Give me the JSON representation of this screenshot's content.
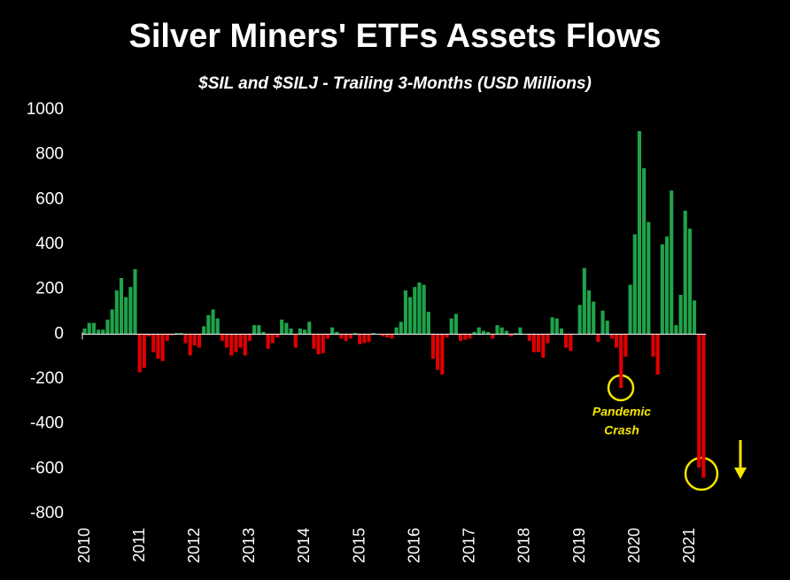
{
  "chart_data": {
    "type": "bar",
    "title": "Silver Miners' ETFs Assets Flows",
    "subtitle": "$SIL and $SILJ - Trailing 3-Months  (USD Millions)",
    "categories": [
      "2010",
      null,
      null,
      null,
      null,
      null,
      null,
      null,
      null,
      null,
      null,
      null,
      "2011",
      null,
      null,
      null,
      null,
      null,
      null,
      null,
      null,
      null,
      null,
      null,
      "2012",
      null,
      null,
      null,
      null,
      null,
      null,
      null,
      null,
      null,
      null,
      null,
      "2013",
      null,
      null,
      null,
      null,
      null,
      null,
      null,
      null,
      null,
      null,
      null,
      "2014",
      null,
      null,
      null,
      null,
      null,
      null,
      null,
      null,
      null,
      null,
      null,
      "2015",
      null,
      null,
      null,
      null,
      null,
      null,
      null,
      null,
      null,
      null,
      null,
      "2016",
      null,
      null,
      null,
      null,
      null,
      null,
      null,
      null,
      null,
      null,
      null,
      "2017",
      null,
      null,
      null,
      null,
      null,
      null,
      null,
      null,
      null,
      null,
      null,
      "2018",
      null,
      null,
      null,
      null,
      null,
      null,
      null,
      null,
      null,
      null,
      null,
      "2019",
      null,
      null,
      null,
      null,
      null,
      null,
      null,
      null,
      null,
      null,
      null,
      "2020",
      null,
      null,
      null,
      null,
      null,
      null,
      null,
      null,
      null,
      null,
      null,
      "2021",
      null,
      null,
      null
    ],
    "values": [
      25,
      50,
      50,
      20,
      20,
      65,
      110,
      195,
      250,
      165,
      210,
      290,
      -170,
      -150,
      -10,
      -80,
      -110,
      -120,
      -30,
      -5,
      5,
      5,
      -40,
      -95,
      -50,
      -60,
      35,
      85,
      110,
      70,
      -30,
      -60,
      -95,
      -80,
      -60,
      -95,
      -30,
      40,
      40,
      10,
      -65,
      -40,
      -15,
      65,
      50,
      25,
      -60,
      25,
      20,
      55,
      -65,
      -90,
      -85,
      -20,
      30,
      10,
      -20,
      -30,
      -20,
      5,
      -45,
      -40,
      -35,
      5,
      0,
      -10,
      -15,
      -20,
      30,
      55,
      195,
      165,
      210,
      230,
      220,
      100,
      -110,
      -160,
      -180,
      -15,
      70,
      90,
      -30,
      -25,
      -20,
      10,
      30,
      15,
      10,
      -20,
      40,
      30,
      15,
      -10,
      5,
      30,
      0,
      -30,
      -80,
      -80,
      -105,
      -40,
      75,
      70,
      25,
      -60,
      -75,
      0,
      130,
      295,
      195,
      145,
      -35,
      105,
      60,
      -20,
      -60,
      -240,
      -100,
      220,
      445,
      905,
      740,
      500,
      -100,
      -180,
      400,
      435,
      640,
      40,
      175,
      550,
      470,
      150,
      -595,
      -640
    ],
    "positive_color": "#1fa34a",
    "negative_color": "#e00000",
    "ylim": [
      -800,
      1000
    ],
    "yticks": [
      1000,
      800,
      600,
      400,
      200,
      0,
      -200,
      -400,
      -600,
      -800
    ],
    "annotation_lines": [
      "Pandemic",
      "Crash"
    ]
  }
}
